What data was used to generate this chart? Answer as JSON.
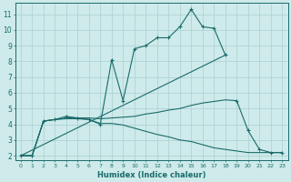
{
  "xlabel": "Humidex (Indice chaleur)",
  "bg_color": "#ceeaea",
  "grid_color": "#aad0d0",
  "line_color": "#1a6b6b",
  "xlim": [
    -0.5,
    23.5
  ],
  "ylim": [
    1.7,
    11.7
  ],
  "xticks": [
    0,
    1,
    2,
    3,
    4,
    5,
    6,
    7,
    8,
    9,
    10,
    11,
    12,
    13,
    14,
    15,
    16,
    17,
    18,
    19,
    20,
    21,
    22,
    23
  ],
  "yticks": [
    2,
    3,
    4,
    5,
    6,
    7,
    8,
    9,
    10,
    11
  ],
  "curve1_x": [
    0,
    1,
    2,
    3,
    4,
    5,
    6,
    7,
    8,
    9,
    10,
    11,
    12,
    13,
    14,
    15,
    16,
    17,
    18
  ],
  "curve1_y": [
    2,
    2,
    4.2,
    4.3,
    4.5,
    4.4,
    4.3,
    4.0,
    8.1,
    5.5,
    8.8,
    9.0,
    9.5,
    9.5,
    10.2,
    11.3,
    10.2,
    10.1,
    8.4
  ],
  "curve2_x": [
    0,
    18
  ],
  "curve2_y": [
    2,
    8.4
  ],
  "curve3_x": [
    0,
    1,
    2,
    3,
    4,
    5,
    6,
    7,
    8,
    9,
    10,
    11,
    12,
    13,
    14,
    15,
    16,
    17,
    18,
    19
  ],
  "curve3_y": [
    2,
    2,
    4.2,
    4.3,
    4.4,
    4.4,
    4.4,
    4.35,
    4.4,
    4.45,
    4.5,
    4.65,
    4.75,
    4.9,
    5.0,
    5.2,
    5.35,
    5.45,
    5.55,
    5.5
  ],
  "curve4_x": [
    0,
    1,
    2,
    3,
    4,
    5,
    6,
    7,
    8,
    9,
    10,
    11,
    12,
    13,
    14,
    15,
    16,
    17,
    18,
    19,
    20,
    21,
    22,
    23
  ],
  "curve4_y": [
    2,
    2,
    4.2,
    4.3,
    4.35,
    4.35,
    4.3,
    4.05,
    4.05,
    3.95,
    3.75,
    3.55,
    3.35,
    3.2,
    3.0,
    2.9,
    2.7,
    2.5,
    2.4,
    2.3,
    2.2,
    2.2,
    2.2,
    2.2
  ],
  "curve5_x": [
    19,
    20,
    21,
    22,
    23
  ],
  "curve5_y": [
    5.5,
    3.6,
    2.4,
    2.2,
    2.2
  ]
}
